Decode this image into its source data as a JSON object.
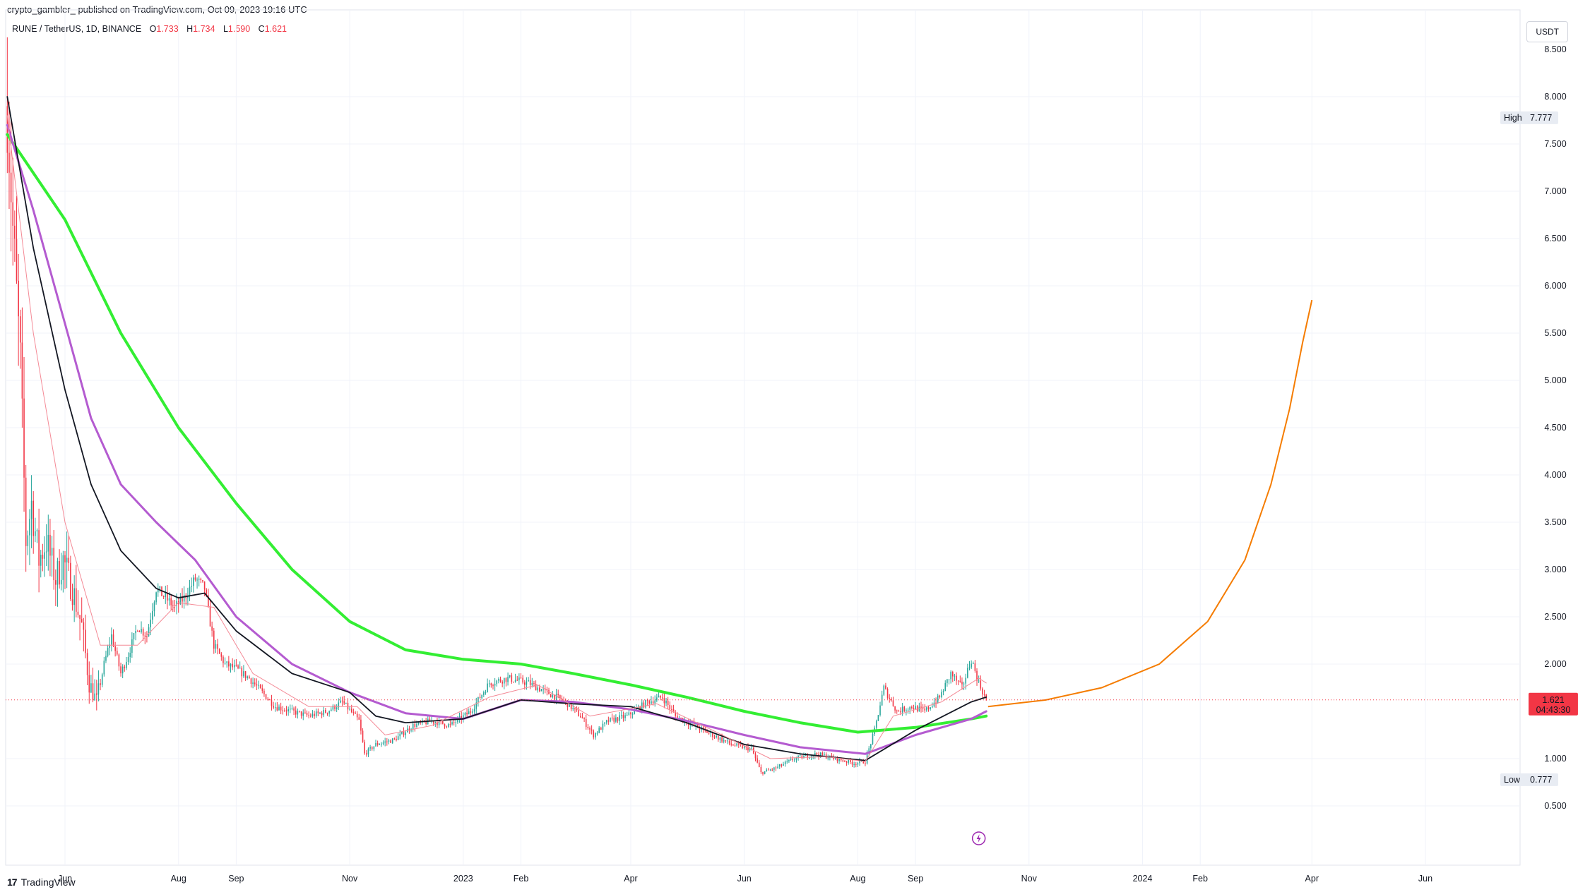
{
  "header": {
    "publisher_line": "crypto_gambler_ published on TradingView.com, Oct 09, 2023 19:16 UTC",
    "symbol": "RUNE / TetherUS, 1D, BINANCE",
    "ohlc": [
      {
        "label": "O",
        "value": "1.733"
      },
      {
        "label": "H",
        "value": "1.734"
      },
      {
        "label": "L",
        "value": "1.590"
      },
      {
        "label": "C",
        "value": "1.621"
      }
    ],
    "currency_button": "USDT"
  },
  "footer": {
    "brand": "TradingView"
  },
  "colors": {
    "up": "#26a69a",
    "down": "#f23645",
    "ema_green": "#33ee33",
    "ema_purple": "#b45bd0",
    "sma_black": "#131722",
    "thin_red": "#f48a96",
    "thin_orange": "#f7a35c",
    "projection": "#f57c00",
    "price_line": "#f23645",
    "event_icon": "#9c27b0"
  },
  "chart_data": {
    "type": "candlestick",
    "title": "RUNE / TetherUS, 1D, BINANCE",
    "y_axis": {
      "ticks": [
        "8.000",
        "7.500",
        "7.000",
        "6.500",
        "6.000",
        "5.500",
        "5.000",
        "4.500",
        "4.000",
        "3.500",
        "3.000",
        "2.500",
        "2.000",
        "1.000",
        "0.500"
      ],
      "tick_values": [
        8.0,
        7.5,
        7.0,
        6.5,
        6.0,
        5.5,
        5.0,
        4.5,
        4.0,
        3.5,
        3.0,
        2.5,
        2.0,
        1.0,
        0.5
      ],
      "top_label": "8.500",
      "range": [
        0.5,
        8.5
      ]
    },
    "x_axis": {
      "ticks": [
        {
          "label": "Jun",
          "date": "2022-06-01"
        },
        {
          "label": "Aug",
          "date": "2022-08-01"
        },
        {
          "label": "Sep",
          "date": "2022-09-01"
        },
        {
          "label": "Nov",
          "date": "2022-11-01"
        },
        {
          "label": "2023",
          "date": "2023-01-01"
        },
        {
          "label": "Feb",
          "date": "2023-02-01"
        },
        {
          "label": "Apr",
          "date": "2023-04-01"
        },
        {
          "label": "Jun",
          "date": "2023-06-01"
        },
        {
          "label": "Aug",
          "date": "2023-08-01"
        },
        {
          "label": "Sep",
          "date": "2023-09-01"
        },
        {
          "label": "Nov",
          "date": "2023-11-01"
        },
        {
          "label": "2024",
          "date": "2024-01-01"
        },
        {
          "label": "Feb",
          "date": "2024-02-01"
        },
        {
          "label": "Apr",
          "date": "2024-04-01"
        },
        {
          "label": "Jun",
          "date": "2024-06-01"
        }
      ]
    },
    "high_marker": {
      "label": "High",
      "value": "7.777"
    },
    "low_marker": {
      "label": "Low",
      "value": "0.777"
    },
    "last_price": {
      "value": "1.621",
      "countdown": "04:43:30"
    },
    "price_path": [
      [
        "2022-05-01",
        7.9
      ],
      [
        "2022-05-04",
        6.6
      ],
      [
        "2022-05-08",
        5.2
      ],
      [
        "2022-05-11",
        3.3
      ],
      [
        "2022-05-14",
        3.7
      ],
      [
        "2022-05-18",
        3.1
      ],
      [
        "2022-05-22",
        3.3
      ],
      [
        "2022-05-27",
        2.9
      ],
      [
        "2022-05-31",
        3.1
      ],
      [
        "2022-06-05",
        2.8
      ],
      [
        "2022-06-10",
        2.4
      ],
      [
        "2022-06-14",
        1.8
      ],
      [
        "2022-06-18",
        1.6
      ],
      [
        "2022-06-22",
        2.0
      ],
      [
        "2022-06-26",
        2.3
      ],
      [
        "2022-07-01",
        1.9
      ],
      [
        "2022-07-05",
        2.1
      ],
      [
        "2022-07-10",
        2.4
      ],
      [
        "2022-07-15",
        2.3
      ],
      [
        "2022-07-20",
        2.8
      ],
      [
        "2022-07-25",
        2.7
      ],
      [
        "2022-07-30",
        2.6
      ],
      [
        "2022-08-04",
        2.7
      ],
      [
        "2022-08-10",
        2.9
      ],
      [
        "2022-08-15",
        2.8
      ],
      [
        "2022-08-20",
        2.2
      ],
      [
        "2022-08-26",
        2.0
      ],
      [
        "2022-09-01",
        1.95
      ],
      [
        "2022-09-08",
        1.85
      ],
      [
        "2022-09-15",
        1.7
      ],
      [
        "2022-09-22",
        1.55
      ],
      [
        "2022-10-01",
        1.5
      ],
      [
        "2022-10-10",
        1.45
      ],
      [
        "2022-10-20",
        1.5
      ],
      [
        "2022-10-28",
        1.6
      ],
      [
        "2022-11-06",
        1.4
      ],
      [
        "2022-11-09",
        1.05
      ],
      [
        "2022-11-15",
        1.15
      ],
      [
        "2022-11-25",
        1.2
      ],
      [
        "2022-12-05",
        1.35
      ],
      [
        "2022-12-15",
        1.4
      ],
      [
        "2022-12-25",
        1.35
      ],
      [
        "2023-01-05",
        1.5
      ],
      [
        "2023-01-15",
        1.8
      ],
      [
        "2023-01-25",
        1.85
      ],
      [
        "2023-02-05",
        1.8
      ],
      [
        "2023-02-15",
        1.7
      ],
      [
        "2023-02-25",
        1.6
      ],
      [
        "2023-03-05",
        1.45
      ],
      [
        "2023-03-12",
        1.25
      ],
      [
        "2023-03-20",
        1.4
      ],
      [
        "2023-03-30",
        1.45
      ],
      [
        "2023-04-10",
        1.6
      ],
      [
        "2023-04-18",
        1.65
      ],
      [
        "2023-04-25",
        1.45
      ],
      [
        "2023-05-05",
        1.35
      ],
      [
        "2023-05-15",
        1.25
      ],
      [
        "2023-05-25",
        1.15
      ],
      [
        "2023-06-05",
        1.1
      ],
      [
        "2023-06-10",
        0.85
      ],
      [
        "2023-06-18",
        0.9
      ],
      [
        "2023-06-28",
        1.0
      ],
      [
        "2023-07-10",
        1.05
      ],
      [
        "2023-07-20",
        1.0
      ],
      [
        "2023-07-30",
        0.95
      ],
      [
        "2023-08-05",
        0.97
      ],
      [
        "2023-08-10",
        1.3
      ],
      [
        "2023-08-15",
        1.75
      ],
      [
        "2023-08-22",
        1.5
      ],
      [
        "2023-08-30",
        1.55
      ],
      [
        "2023-09-06",
        1.5
      ],
      [
        "2023-09-14",
        1.65
      ],
      [
        "2023-09-20",
        1.9
      ],
      [
        "2023-09-26",
        1.75
      ],
      [
        "2023-10-01",
        2.05
      ],
      [
        "2023-10-05",
        1.8
      ],
      [
        "2023-10-09",
        1.621
      ]
    ],
    "series": [
      {
        "style": "thick-green",
        "values": [
          [
            "2022-05-01",
            7.6
          ],
          [
            "2022-06-01",
            6.7
          ],
          [
            "2022-07-01",
            5.5
          ],
          [
            "2022-08-01",
            4.5
          ],
          [
            "2022-09-01",
            3.7
          ],
          [
            "2022-10-01",
            3.0
          ],
          [
            "2022-11-01",
            2.45
          ],
          [
            "2022-12-01",
            2.15
          ],
          [
            "2023-01-01",
            2.05
          ],
          [
            "2023-02-01",
            2.0
          ],
          [
            "2023-03-01",
            1.9
          ],
          [
            "2023-04-01",
            1.78
          ],
          [
            "2023-05-01",
            1.65
          ],
          [
            "2023-06-01",
            1.5
          ],
          [
            "2023-07-01",
            1.38
          ],
          [
            "2023-08-01",
            1.28
          ],
          [
            "2023-09-01",
            1.33
          ],
          [
            "2023-10-01",
            1.42
          ],
          [
            "2023-10-09",
            1.45
          ]
        ]
      },
      {
        "style": "purple",
        "values": [
          [
            "2022-05-01",
            7.7
          ],
          [
            "2022-05-15",
            6.8
          ],
          [
            "2022-06-01",
            5.6
          ],
          [
            "2022-06-15",
            4.6
          ],
          [
            "2022-07-01",
            3.9
          ],
          [
            "2022-07-20",
            3.5
          ],
          [
            "2022-08-10",
            3.1
          ],
          [
            "2022-09-01",
            2.5
          ],
          [
            "2022-10-01",
            2.0
          ],
          [
            "2022-11-01",
            1.7
          ],
          [
            "2022-12-01",
            1.48
          ],
          [
            "2023-01-01",
            1.42
          ],
          [
            "2023-02-01",
            1.62
          ],
          [
            "2023-03-01",
            1.6
          ],
          [
            "2023-04-01",
            1.52
          ],
          [
            "2023-05-01",
            1.4
          ],
          [
            "2023-06-01",
            1.25
          ],
          [
            "2023-07-01",
            1.12
          ],
          [
            "2023-08-05",
            1.05
          ],
          [
            "2023-09-01",
            1.25
          ],
          [
            "2023-10-01",
            1.42
          ],
          [
            "2023-10-09",
            1.5
          ]
        ]
      },
      {
        "style": "black",
        "values": [
          [
            "2022-05-01",
            8.0
          ],
          [
            "2022-05-15",
            6.4
          ],
          [
            "2022-06-01",
            4.9
          ],
          [
            "2022-06-15",
            3.9
          ],
          [
            "2022-07-01",
            3.2
          ],
          [
            "2022-07-20",
            2.8
          ],
          [
            "2022-08-01",
            2.7
          ],
          [
            "2022-08-15",
            2.75
          ],
          [
            "2022-09-01",
            2.35
          ],
          [
            "2022-10-01",
            1.9
          ],
          [
            "2022-11-01",
            1.7
          ],
          [
            "2022-11-15",
            1.45
          ],
          [
            "2022-12-01",
            1.38
          ],
          [
            "2023-01-01",
            1.42
          ],
          [
            "2023-02-01",
            1.62
          ],
          [
            "2023-03-01",
            1.58
          ],
          [
            "2023-04-01",
            1.55
          ],
          [
            "2023-05-01",
            1.38
          ],
          [
            "2023-06-01",
            1.15
          ],
          [
            "2023-07-01",
            1.05
          ],
          [
            "2023-08-05",
            0.98
          ],
          [
            "2023-09-01",
            1.3
          ],
          [
            "2023-10-01",
            1.6
          ],
          [
            "2023-10-09",
            1.65
          ]
        ]
      },
      {
        "style": "thin-red",
        "values": [
          [
            "2022-05-01",
            7.8
          ],
          [
            "2022-05-15",
            5.5
          ],
          [
            "2022-06-01",
            3.5
          ],
          [
            "2022-06-20",
            2.2
          ],
          [
            "2022-07-10",
            2.2
          ],
          [
            "2022-08-01",
            2.65
          ],
          [
            "2022-08-20",
            2.6
          ],
          [
            "2022-09-10",
            1.9
          ],
          [
            "2022-10-10",
            1.55
          ],
          [
            "2022-11-05",
            1.55
          ],
          [
            "2022-11-20",
            1.25
          ],
          [
            "2022-12-15",
            1.35
          ],
          [
            "2023-01-15",
            1.65
          ],
          [
            "2023-02-10",
            1.78
          ],
          [
            "2023-03-10",
            1.45
          ],
          [
            "2023-04-15",
            1.58
          ],
          [
            "2023-05-15",
            1.3
          ],
          [
            "2023-06-15",
            1.0
          ],
          [
            "2023-07-15",
            1.02
          ],
          [
            "2023-08-05",
            0.97
          ],
          [
            "2023-08-20",
            1.45
          ],
          [
            "2023-09-15",
            1.6
          ],
          [
            "2023-10-05",
            1.85
          ],
          [
            "2023-10-09",
            1.8
          ]
        ]
      }
    ],
    "projection_curve": [
      [
        "2023-10-10",
        1.55
      ],
      [
        "2023-11-10",
        1.62
      ],
      [
        "2023-12-10",
        1.75
      ],
      [
        "2024-01-10",
        2.0
      ],
      [
        "2024-02-05",
        2.45
      ],
      [
        "2024-02-25",
        3.1
      ],
      [
        "2024-03-10",
        3.9
      ],
      [
        "2024-03-20",
        4.7
      ],
      [
        "2024-03-27",
        5.4
      ],
      [
        "2024-04-01",
        5.85
      ]
    ]
  }
}
